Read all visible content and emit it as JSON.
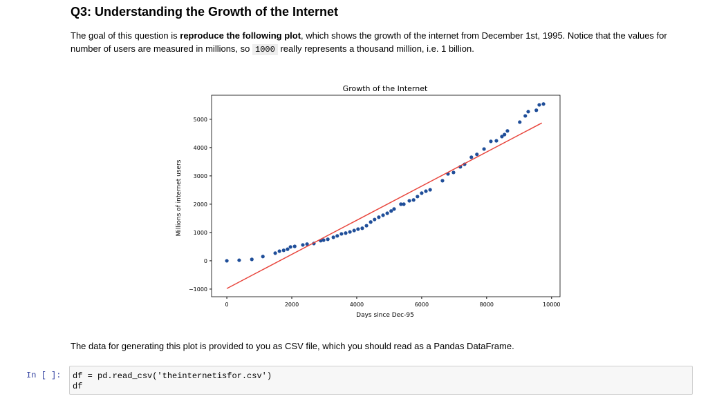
{
  "header": {
    "title": "Q3: Understanding the Growth of the Internet"
  },
  "intro": {
    "parts": [
      "The goal of this question is ",
      "reproduce the following plot",
      ", which shows the growth of the internet from December 1st, 1995. Notice that the values for number of users are measured in millions, so ",
      "1000",
      " really represents a thousand million, i.e. 1 billion."
    ]
  },
  "chart_data": {
    "type": "scatter",
    "title": "Growth of the Internet",
    "xlabel": "Days since Dec-95",
    "ylabel": "Millions of internet users",
    "xlim": [
      -470,
      10260
    ],
    "ylim": [
      -1270,
      5850
    ],
    "xticks": [
      0,
      2000,
      4000,
      6000,
      8000,
      10000
    ],
    "yticks": [
      {
        "value": -1000,
        "label": "−1000"
      },
      0,
      1000,
      2000,
      3000,
      4000,
      5000
    ],
    "series": [
      {
        "type": "scatter",
        "color": "#1f4e99",
        "x": [
          0,
          380,
          770,
          1110,
          1490,
          1620,
          1750,
          1870,
          1960,
          2090,
          2340,
          2470,
          2680,
          2890,
          2980,
          3110,
          3280,
          3400,
          3530,
          3660,
          3790,
          3920,
          4040,
          4170,
          4300,
          4430,
          4550,
          4680,
          4810,
          4940,
          5060,
          5150,
          5360,
          5450,
          5620,
          5750,
          5870,
          6000,
          6130,
          6260,
          6640,
          6810,
          6980,
          7190,
          7320,
          7530,
          7700,
          7920,
          8130,
          8300,
          8470,
          8550,
          8640,
          9020,
          9190,
          9280,
          9530,
          9620,
          9750
        ],
        "values": [
          0,
          20,
          50,
          150,
          270,
          340,
          370,
          410,
          490,
          510,
          560,
          590,
          610,
          710,
          730,
          760,
          830,
          880,
          950,
          980,
          1020,
          1070,
          1120,
          1150,
          1240,
          1370,
          1460,
          1540,
          1610,
          1680,
          1760,
          1830,
          2000,
          2000,
          2120,
          2150,
          2270,
          2390,
          2460,
          2510,
          2830,
          3070,
          3120,
          3320,
          3410,
          3660,
          3760,
          3950,
          4220,
          4240,
          4390,
          4460,
          4590,
          4900,
          5120,
          5270,
          5320,
          5510,
          5540
        ]
      },
      {
        "type": "line",
        "color": "#e8453c",
        "x": [
          0,
          9700
        ],
        "values": [
          -980,
          4870
        ]
      }
    ]
  },
  "caption": "The data for generating this plot is provided to you as CSV file, which you should read as a Pandas DataFrame.",
  "cell": {
    "prompt": "In [ ]:",
    "lines": [
      "df = pd.read_csv('theinternetisfor.csv')",
      "df"
    ]
  }
}
